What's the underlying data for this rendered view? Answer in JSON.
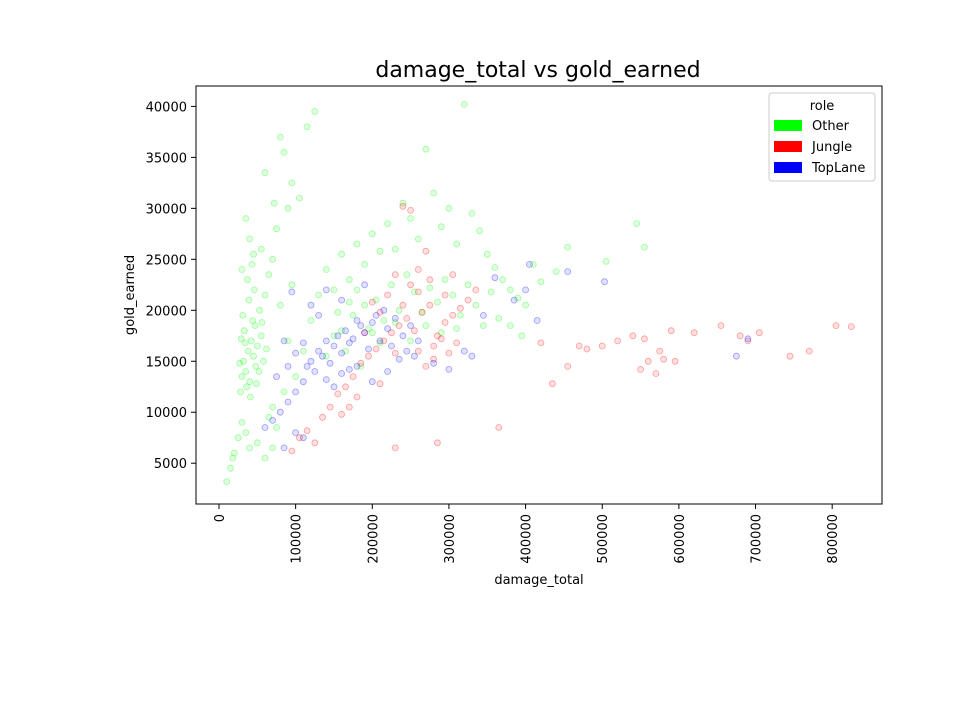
{
  "chart_data": {
    "type": "scatter",
    "title": "damage_total vs gold_earned",
    "xlabel": "damage_total",
    "ylabel": "gold_earned",
    "xlim": [
      -30000,
      865000
    ],
    "ylim": [
      1000,
      42000
    ],
    "xticks": [
      0,
      100000,
      200000,
      300000,
      400000,
      500000,
      600000,
      700000,
      800000
    ],
    "xtick_labels": [
      "0",
      "100000",
      "200000",
      "300000",
      "400000",
      "500000",
      "600000",
      "700000",
      "800000"
    ],
    "yticks": [
      5000,
      10000,
      15000,
      20000,
      25000,
      30000,
      35000,
      40000
    ],
    "ytick_labels": [
      "5000",
      "10000",
      "15000",
      "20000",
      "25000",
      "30000",
      "35000",
      "40000"
    ],
    "grid": false,
    "legend": {
      "title": "role",
      "placement": "top-right"
    },
    "series": [
      {
        "name": "Other",
        "color": "#00ff00",
        "points": [
          [
            10000,
            3200
          ],
          [
            15000,
            4500
          ],
          [
            20000,
            6000
          ],
          [
            25000,
            7500
          ],
          [
            18000,
            5500
          ],
          [
            30000,
            9000
          ],
          [
            35000,
            8000
          ],
          [
            40000,
            6500
          ],
          [
            28000,
            12000
          ],
          [
            30000,
            13500
          ],
          [
            32000,
            15000
          ],
          [
            35000,
            14000
          ],
          [
            38000,
            16000
          ],
          [
            40000,
            13000
          ],
          [
            42000,
            17000
          ],
          [
            45000,
            15500
          ],
          [
            48000,
            14500
          ],
          [
            50000,
            16500
          ],
          [
            33000,
            18000
          ],
          [
            36000,
            12500
          ],
          [
            44000,
            19000
          ],
          [
            52000,
            14000
          ],
          [
            55000,
            17500
          ],
          [
            39000,
            21000
          ],
          [
            46000,
            22000
          ],
          [
            41000,
            11500
          ],
          [
            34000,
            16800
          ],
          [
            47000,
            18500
          ],
          [
            53000,
            20000
          ],
          [
            58000,
            15000
          ],
          [
            31000,
            19500
          ],
          [
            37000,
            23000
          ],
          [
            43000,
            24500
          ],
          [
            49000,
            12800
          ],
          [
            56000,
            18800
          ],
          [
            60000,
            21500
          ],
          [
            27000,
            14800
          ],
          [
            29000,
            17200
          ],
          [
            62000,
            16200
          ],
          [
            45000,
            25500
          ],
          [
            40000,
            27000
          ],
          [
            35000,
            29000
          ],
          [
            30000,
            24000
          ],
          [
            55000,
            26000
          ],
          [
            65000,
            23500
          ],
          [
            70000,
            25000
          ],
          [
            75000,
            28000
          ],
          [
            80000,
            37000
          ],
          [
            85000,
            35500
          ],
          [
            95000,
            32500
          ],
          [
            105000,
            31000
          ],
          [
            90000,
            30000
          ],
          [
            60000,
            33500
          ],
          [
            72000,
            30500
          ],
          [
            125000,
            39500
          ],
          [
            115000,
            38000
          ],
          [
            70000,
            10500
          ],
          [
            85000,
            12000
          ],
          [
            100000,
            13500
          ],
          [
            110000,
            16000
          ],
          [
            120000,
            19000
          ],
          [
            90000,
            17000
          ],
          [
            80000,
            20500
          ],
          [
            95000,
            22500
          ],
          [
            130000,
            21500
          ],
          [
            140000,
            24000
          ],
          [
            150000,
            22000
          ],
          [
            160000,
            25500
          ],
          [
            170000,
            23000
          ],
          [
            180000,
            26500
          ],
          [
            190000,
            24500
          ],
          [
            200000,
            27500
          ],
          [
            210000,
            25800
          ],
          [
            220000,
            28500
          ],
          [
            230000,
            26000
          ],
          [
            240000,
            30500
          ],
          [
            250000,
            29000
          ],
          [
            260000,
            27000
          ],
          [
            270000,
            35800
          ],
          [
            280000,
            31500
          ],
          [
            290000,
            28200
          ],
          [
            300000,
            30000
          ],
          [
            310000,
            26500
          ],
          [
            320000,
            40200
          ],
          [
            330000,
            29500
          ],
          [
            340000,
            27800
          ],
          [
            350000,
            25500
          ],
          [
            360000,
            24200
          ],
          [
            370000,
            23000
          ],
          [
            380000,
            22000
          ],
          [
            390000,
            21200
          ],
          [
            400000,
            20500
          ],
          [
            410000,
            24500
          ],
          [
            420000,
            22800
          ],
          [
            440000,
            23800
          ],
          [
            455000,
            26200
          ],
          [
            160000,
            18000
          ],
          [
            175000,
            19500
          ],
          [
            190000,
            20500
          ],
          [
            205000,
            21000
          ],
          [
            215000,
            19000
          ],
          [
            225000,
            22500
          ],
          [
            235000,
            20000
          ],
          [
            245000,
            23500
          ],
          [
            255000,
            21800
          ],
          [
            265000,
            19800
          ],
          [
            275000,
            22200
          ],
          [
            285000,
            20800
          ],
          [
            295000,
            23000
          ],
          [
            305000,
            21500
          ],
          [
            315000,
            19500
          ],
          [
            325000,
            22500
          ],
          [
            335000,
            20500
          ],
          [
            345000,
            18500
          ],
          [
            355000,
            21800
          ],
          [
            365000,
            19200
          ],
          [
            140000,
            15500
          ],
          [
            150000,
            17500
          ],
          [
            165000,
            16000
          ],
          [
            185000,
            14500
          ],
          [
            200000,
            17800
          ],
          [
            180000,
            22000
          ],
          [
            170000,
            20800
          ],
          [
            155000,
            19800
          ],
          [
            195000,
            18200
          ],
          [
            210000,
            16800
          ],
          [
            230000,
            18800
          ],
          [
            250000,
            17000
          ],
          [
            270000,
            18500
          ],
          [
            290000,
            17800
          ],
          [
            310000,
            18200
          ],
          [
            545000,
            28500
          ],
          [
            505000,
            24800
          ],
          [
            555000,
            26200
          ],
          [
            380000,
            18500
          ],
          [
            395000,
            17500
          ],
          [
            60000,
            5500
          ],
          [
            50000,
            7000
          ],
          [
            70000,
            6500
          ],
          [
            75000,
            8500
          ],
          [
            65000,
            9500
          ]
        ]
      },
      {
        "name": "Jungle",
        "color": "#ff0000",
        "points": [
          [
            95000,
            6200
          ],
          [
            105000,
            7500
          ],
          [
            115000,
            8200
          ],
          [
            125000,
            7000
          ],
          [
            135000,
            9500
          ],
          [
            145000,
            10500
          ],
          [
            155000,
            11800
          ],
          [
            165000,
            12500
          ],
          [
            175000,
            13500
          ],
          [
            185000,
            14800
          ],
          [
            195000,
            15500
          ],
          [
            205000,
            16200
          ],
          [
            215000,
            17000
          ],
          [
            225000,
            17800
          ],
          [
            235000,
            18500
          ],
          [
            245000,
            19200
          ],
          [
            255000,
            18000
          ],
          [
            265000,
            19800
          ],
          [
            275000,
            20500
          ],
          [
            285000,
            17500
          ],
          [
            295000,
            18800
          ],
          [
            305000,
            19500
          ],
          [
            315000,
            20200
          ],
          [
            325000,
            21000
          ],
          [
            335000,
            22000
          ],
          [
            250000,
            22500
          ],
          [
            260000,
            24000
          ],
          [
            270000,
            25800
          ],
          [
            240000,
            30200
          ],
          [
            250000,
            29800
          ],
          [
            230000,
            23500
          ],
          [
            280000,
            16500
          ],
          [
            290000,
            17200
          ],
          [
            300000,
            15800
          ],
          [
            310000,
            16800
          ],
          [
            260000,
            16000
          ],
          [
            270000,
            14500
          ],
          [
            280000,
            15200
          ],
          [
            240000,
            20500
          ],
          [
            220000,
            21500
          ],
          [
            210000,
            19800
          ],
          [
            200000,
            20800
          ],
          [
            230000,
            15800
          ],
          [
            190000,
            17800
          ],
          [
            210000,
            12800
          ],
          [
            180000,
            11500
          ],
          [
            170000,
            10500
          ],
          [
            160000,
            9800
          ],
          [
            285000,
            7000
          ],
          [
            230000,
            6500
          ],
          [
            365000,
            8500
          ],
          [
            420000,
            16800
          ],
          [
            435000,
            12800
          ],
          [
            455000,
            14500
          ],
          [
            470000,
            16500
          ],
          [
            480000,
            16200
          ],
          [
            500000,
            16500
          ],
          [
            520000,
            17000
          ],
          [
            540000,
            17500
          ],
          [
            555000,
            17200
          ],
          [
            560000,
            15000
          ],
          [
            570000,
            13800
          ],
          [
            575000,
            16000
          ],
          [
            580000,
            15200
          ],
          [
            590000,
            18000
          ],
          [
            595000,
            15000
          ],
          [
            620000,
            17800
          ],
          [
            655000,
            18500
          ],
          [
            680000,
            17500
          ],
          [
            705000,
            17800
          ],
          [
            745000,
            15500
          ],
          [
            770000,
            16000
          ],
          [
            805000,
            18500
          ],
          [
            825000,
            18400
          ],
          [
            690000,
            17000
          ],
          [
            550000,
            14200
          ],
          [
            260000,
            21800
          ],
          [
            275000,
            23000
          ],
          [
            295000,
            21500
          ],
          [
            305000,
            23500
          ]
        ]
      },
      {
        "name": "TopLane",
        "color": "#0000ff",
        "points": [
          [
            60000,
            8500
          ],
          [
            70000,
            9200
          ],
          [
            80000,
            10000
          ],
          [
            90000,
            11000
          ],
          [
            100000,
            12000
          ],
          [
            110000,
            13000
          ],
          [
            115000,
            14500
          ],
          [
            120000,
            15000
          ],
          [
            125000,
            14000
          ],
          [
            130000,
            16000
          ],
          [
            135000,
            15500
          ],
          [
            140000,
            17000
          ],
          [
            145000,
            14800
          ],
          [
            150000,
            16500
          ],
          [
            155000,
            17500
          ],
          [
            160000,
            15800
          ],
          [
            165000,
            18000
          ],
          [
            170000,
            16800
          ],
          [
            175000,
            17200
          ],
          [
            180000,
            19000
          ],
          [
            185000,
            18500
          ],
          [
            190000,
            17800
          ],
          [
            195000,
            16200
          ],
          [
            200000,
            18800
          ],
          [
            205000,
            19500
          ],
          [
            210000,
            17000
          ],
          [
            215000,
            20000
          ],
          [
            220000,
            18200
          ],
          [
            225000,
            16500
          ],
          [
            230000,
            19200
          ],
          [
            235000,
            15200
          ],
          [
            240000,
            17500
          ],
          [
            245000,
            16000
          ],
          [
            250000,
            18500
          ],
          [
            255000,
            15500
          ],
          [
            260000,
            17000
          ],
          [
            120000,
            20500
          ],
          [
            130000,
            19500
          ],
          [
            140000,
            13200
          ],
          [
            150000,
            12500
          ],
          [
            160000,
            13800
          ],
          [
            170000,
            14200
          ],
          [
            100000,
            15800
          ],
          [
            110000,
            16800
          ],
          [
            90000,
            14500
          ],
          [
            85000,
            17000
          ],
          [
            75000,
            13500
          ],
          [
            180000,
            14500
          ],
          [
            200000,
            13000
          ],
          [
            220000,
            14000
          ],
          [
            95000,
            21800
          ],
          [
            140000,
            22000
          ],
          [
            160000,
            21000
          ],
          [
            190000,
            22500
          ],
          [
            330000,
            15500
          ],
          [
            345000,
            19500
          ],
          [
            360000,
            23200
          ],
          [
            385000,
            21000
          ],
          [
            400000,
            22000
          ],
          [
            405000,
            24500
          ],
          [
            415000,
            19000
          ],
          [
            455000,
            23800
          ],
          [
            503000,
            22800
          ],
          [
            675000,
            15500
          ],
          [
            690000,
            17200
          ],
          [
            320000,
            16000
          ],
          [
            280000,
            14800
          ],
          [
            300000,
            14200
          ],
          [
            100000,
            8000
          ],
          [
            110000,
            7500
          ],
          [
            85000,
            6500
          ]
        ]
      }
    ]
  }
}
